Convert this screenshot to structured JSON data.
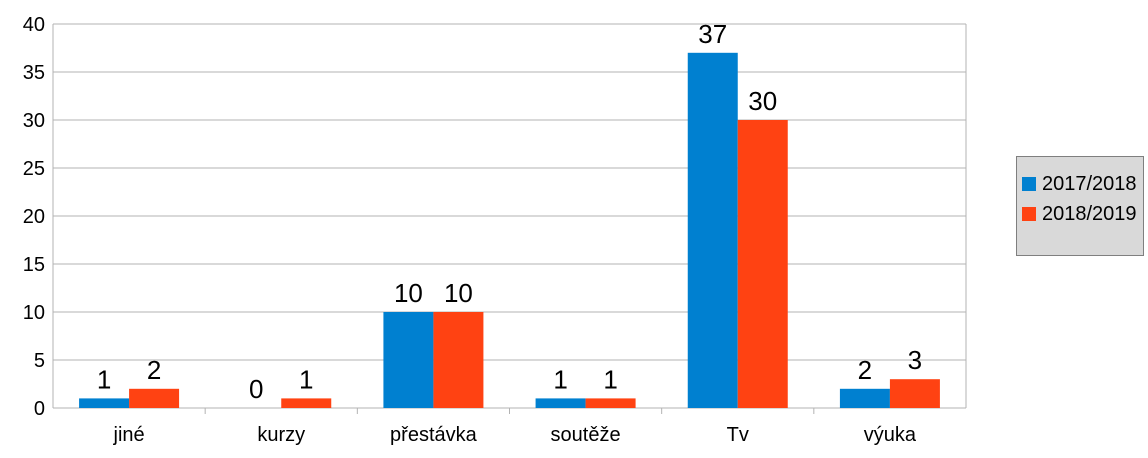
{
  "chart_data": {
    "type": "bar",
    "categories": [
      "jiné",
      "kurzy",
      "přestávka",
      "soutěže",
      "Tv",
      "výuka"
    ],
    "series": [
      {
        "name": "2017/2018",
        "values": [
          1,
          0,
          10,
          1,
          37,
          2
        ],
        "color": "#0080d0"
      },
      {
        "name": "2018/2019",
        "values": [
          2,
          1,
          10,
          1,
          30,
          3
        ],
        "color": "#ff4212"
      }
    ],
    "ylim": [
      0,
      40
    ],
    "yticks": [
      0,
      5,
      10,
      15,
      20,
      25,
      30,
      35,
      40
    ],
    "grid": true,
    "legend_position": "right",
    "data_labels": true
  }
}
